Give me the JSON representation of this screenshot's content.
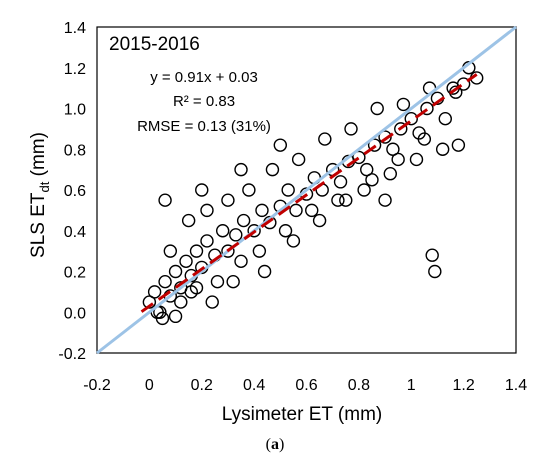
{
  "chart_data": {
    "type": "scatter",
    "title": "",
    "panel_label": "2015-2016",
    "annotations": [
      "y = 0.91x + 0.03",
      "R² = 0.83",
      "RMSE = 0.13 (31%)"
    ],
    "xlabel": "Lysimeter ET (mm)",
    "ylabel_main": "SLS ET",
    "ylabel_sub": "dt",
    "ylabel_unit": " (mm)",
    "xlim": [
      -0.2,
      1.4
    ],
    "ylim": [
      -0.2,
      1.4
    ],
    "x_ticks": [
      "-0.2",
      "0",
      "0.2",
      "0.4",
      "0.6",
      "0.8",
      "1",
      "1.2",
      "1.4"
    ],
    "y_ticks": [
      "-0.2",
      "0.0",
      "0.2",
      "0.4",
      "0.6",
      "0.8",
      "1.0",
      "1.2",
      "1.4"
    ],
    "grid": false,
    "series": [
      {
        "marker": "open-circle",
        "x": [
          0.0,
          0.02,
          0.04,
          0.06,
          0.08,
          0.1,
          0.12,
          0.14,
          0.16,
          0.18,
          0.2,
          0.22,
          0.25,
          0.28,
          0.3,
          0.33,
          0.36,
          0.4,
          0.43,
          0.46,
          0.5,
          0.53,
          0.56,
          0.6,
          0.63,
          0.66,
          0.7,
          0.73,
          0.76,
          0.8,
          0.83,
          0.86,
          0.9,
          0.93,
          0.96,
          1.0,
          1.03,
          1.06,
          1.1,
          1.13,
          1.16,
          1.2,
          1.22,
          1.25,
          0.05,
          0.08,
          0.12,
          0.15,
          0.18,
          0.22,
          0.26,
          0.3,
          0.35,
          0.38,
          0.42,
          0.47,
          0.52,
          0.57,
          0.62,
          0.67,
          0.72,
          0.77,
          0.82,
          0.87,
          0.92,
          0.97,
          1.02,
          1.07,
          1.12,
          1.17,
          0.03,
          0.1,
          0.16,
          0.24,
          0.32,
          0.44,
          0.55,
          0.65,
          0.75,
          0.85,
          0.95,
          1.05,
          1.08,
          1.09,
          0.06,
          0.2,
          0.35,
          0.5,
          0.9,
          1.18
        ],
        "y": [
          0.05,
          0.1,
          0.0,
          0.15,
          0.08,
          0.2,
          0.12,
          0.25,
          0.18,
          0.3,
          0.22,
          0.35,
          0.28,
          0.4,
          0.3,
          0.38,
          0.45,
          0.4,
          0.5,
          0.44,
          0.52,
          0.6,
          0.5,
          0.58,
          0.66,
          0.6,
          0.7,
          0.64,
          0.74,
          0.76,
          0.7,
          0.82,
          0.86,
          0.8,
          0.9,
          0.95,
          0.88,
          1.0,
          1.05,
          0.95,
          1.1,
          1.12,
          1.2,
          1.15,
          -0.03,
          0.3,
          0.05,
          0.45,
          0.12,
          0.5,
          0.15,
          0.55,
          0.25,
          0.6,
          0.3,
          0.7,
          0.4,
          0.75,
          0.5,
          0.85,
          0.55,
          0.9,
          0.6,
          1.0,
          0.68,
          1.02,
          0.75,
          1.1,
          0.8,
          1.08,
          0.0,
          -0.02,
          0.1,
          0.05,
          0.15,
          0.2,
          0.35,
          0.45,
          0.55,
          0.65,
          0.75,
          0.85,
          0.28,
          0.2,
          0.55,
          0.6,
          0.7,
          0.82,
          0.55,
          0.82
        ]
      }
    ],
    "one_to_one_line": {
      "x": [
        -0.2,
        1.4
      ],
      "y": [
        -0.2,
        1.4
      ],
      "color": "#9DC3E6"
    },
    "regression_line": {
      "slope": 0.91,
      "intercept": 0.03,
      "x_range": [
        -0.03,
        1.25
      ],
      "color": "#C00000",
      "dash": "dashed"
    }
  }
}
